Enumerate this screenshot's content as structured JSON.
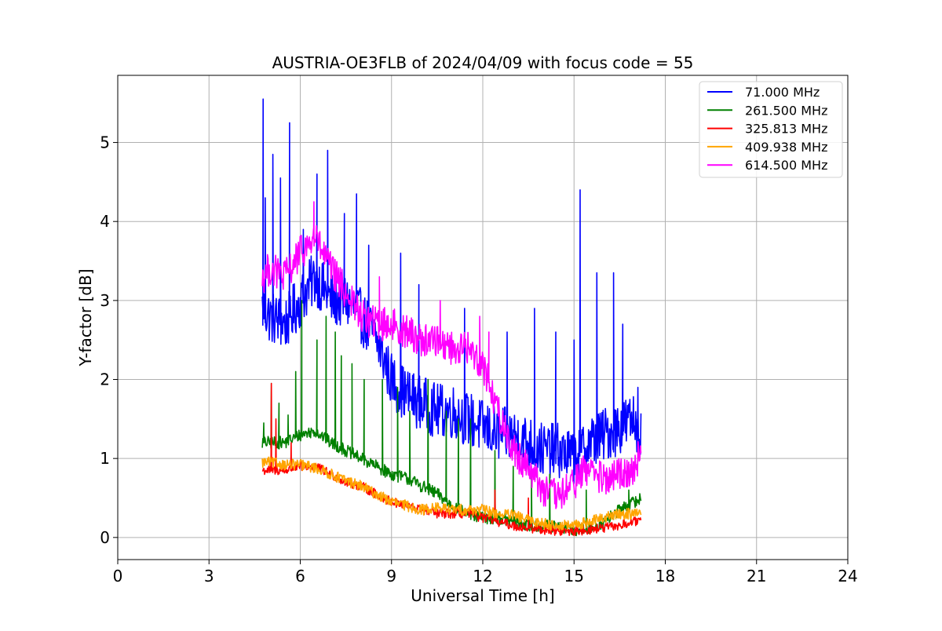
{
  "chart_data": {
    "type": "line",
    "title": "AUSTRIA-OE3FLB of 2024/04/09 with focus code = 55",
    "xlabel": "Universal Time [h]",
    "ylabel": "Y-factor [dB]",
    "xlim": [
      0,
      24
    ],
    "ylim": [
      -0.28,
      5.85
    ],
    "xticks": [
      0,
      3,
      6,
      9,
      12,
      15,
      18,
      21,
      24
    ],
    "yticks": [
      0,
      1,
      2,
      3,
      4,
      5
    ],
    "grid": true,
    "legend_position": "top-right",
    "series": [
      {
        "name": " 71.000 MHz",
        "color": "#0000ff",
        "x": [
          4.75,
          5.0,
          5.5,
          6.0,
          6.5,
          7.0,
          7.5,
          8.0,
          8.5,
          9.0,
          9.5,
          10.0,
          10.5,
          11.0,
          11.5,
          12.0,
          12.5,
          13.0,
          13.5,
          14.0,
          14.5,
          15.0,
          15.5,
          16.0,
          16.5,
          17.0,
          17.2
        ],
        "values": [
          2.9,
          2.8,
          2.7,
          3.0,
          3.3,
          3.0,
          3.0,
          2.8,
          2.5,
          2.0,
          1.8,
          1.7,
          1.6,
          1.6,
          1.5,
          1.4,
          1.3,
          1.3,
          1.2,
          1.1,
          1.1,
          1.0,
          1.2,
          1.3,
          1.4,
          1.5,
          1.3
        ],
        "noise": 0.35,
        "spikes": [
          [
            4.78,
            5.55
          ],
          [
            4.85,
            4.3
          ],
          [
            5.1,
            4.85
          ],
          [
            5.35,
            4.55
          ],
          [
            5.65,
            5.25
          ],
          [
            6.1,
            3.9
          ],
          [
            6.55,
            4.6
          ],
          [
            6.9,
            4.9
          ],
          [
            7.45,
            4.1
          ],
          [
            7.85,
            4.35
          ],
          [
            8.25,
            3.7
          ],
          [
            9.3,
            3.6
          ],
          [
            9.9,
            3.2
          ],
          [
            11.4,
            2.9
          ],
          [
            12.8,
            2.6
          ],
          [
            13.7,
            2.9
          ],
          [
            14.4,
            2.6
          ],
          [
            15.0,
            2.5
          ],
          [
            15.2,
            4.4
          ],
          [
            15.75,
            3.35
          ],
          [
            16.3,
            3.35
          ],
          [
            16.6,
            2.7
          ],
          [
            17.1,
            1.9
          ]
        ]
      },
      {
        "name": " 261.500 MHz",
        "color": "#008000",
        "x": [
          4.75,
          5.0,
          5.5,
          6.0,
          6.5,
          7.0,
          7.5,
          8.0,
          8.5,
          9.0,
          9.5,
          10.0,
          10.5,
          11.0,
          11.5,
          12.0,
          12.5,
          13.0,
          13.5,
          14.0,
          14.5,
          15.0,
          15.5,
          16.0,
          16.5,
          17.0,
          17.2
        ],
        "values": [
          1.2,
          1.2,
          1.2,
          1.3,
          1.35,
          1.2,
          1.1,
          1.0,
          0.9,
          0.8,
          0.75,
          0.65,
          0.55,
          0.4,
          0.3,
          0.25,
          0.25,
          0.2,
          0.15,
          0.15,
          0.12,
          0.1,
          0.1,
          0.2,
          0.35,
          0.45,
          0.5
        ],
        "noise": 0.08,
        "spikes": [
          [
            4.8,
            1.45
          ],
          [
            5.05,
            1.95
          ],
          [
            5.3,
            1.7
          ],
          [
            5.6,
            1.55
          ],
          [
            5.85,
            2.1
          ],
          [
            6.05,
            3.0
          ],
          [
            6.55,
            2.5
          ],
          [
            6.85,
            2.8
          ],
          [
            7.15,
            2.6
          ],
          [
            7.35,
            2.3
          ],
          [
            7.7,
            2.2
          ],
          [
            8.1,
            2.0
          ],
          [
            8.7,
            2.0
          ],
          [
            9.2,
            1.9
          ],
          [
            9.6,
            1.6
          ],
          [
            10.2,
            2.0
          ],
          [
            10.8,
            1.6
          ],
          [
            11.2,
            1.5
          ],
          [
            11.6,
            1.5
          ],
          [
            12.4,
            1.1
          ],
          [
            13.0,
            0.9
          ],
          [
            13.6,
            0.8
          ],
          [
            14.2,
            0.8
          ],
          [
            15.4,
            0.6
          ],
          [
            16.8,
            0.6
          ]
        ]
      },
      {
        "name": " 325.813 MHz",
        "color": "#ff0000",
        "x": [
          4.75,
          5.0,
          5.5,
          6.0,
          6.5,
          7.0,
          7.5,
          8.0,
          8.5,
          9.0,
          9.5,
          10.0,
          10.5,
          11.0,
          11.5,
          12.0,
          12.5,
          13.0,
          13.5,
          14.0,
          14.5,
          15.0,
          15.5,
          16.0,
          16.5,
          17.0,
          17.2
        ],
        "values": [
          0.85,
          0.85,
          0.85,
          0.9,
          0.9,
          0.8,
          0.7,
          0.65,
          0.55,
          0.45,
          0.4,
          0.35,
          0.3,
          0.3,
          0.3,
          0.25,
          0.2,
          0.15,
          0.12,
          0.1,
          0.08,
          0.08,
          0.1,
          0.12,
          0.15,
          0.2,
          0.2
        ],
        "noise": 0.06,
        "spikes": [
          [
            5.05,
            1.95
          ],
          [
            5.2,
            1.5
          ],
          [
            5.7,
            1.2
          ],
          [
            12.4,
            0.6
          ],
          [
            13.5,
            0.5
          ]
        ]
      },
      {
        "name": " 409.938 MHz",
        "color": "#ffa500",
        "x": [
          4.75,
          5.0,
          5.5,
          6.0,
          6.5,
          7.0,
          7.5,
          8.0,
          8.5,
          9.0,
          9.5,
          10.0,
          10.5,
          11.0,
          11.5,
          12.0,
          12.5,
          13.0,
          13.5,
          14.0,
          14.5,
          15.0,
          15.5,
          16.0,
          16.5,
          17.0,
          17.2
        ],
        "values": [
          0.95,
          0.95,
          0.92,
          0.92,
          0.88,
          0.8,
          0.72,
          0.65,
          0.55,
          0.45,
          0.4,
          0.35,
          0.38,
          0.35,
          0.35,
          0.35,
          0.3,
          0.28,
          0.22,
          0.18,
          0.15,
          0.15,
          0.2,
          0.25,
          0.3,
          0.3,
          0.35
        ],
        "noise": 0.07,
        "spikes": []
      },
      {
        "name": " 614.500 MHz",
        "color": "#ff00ff",
        "x": [
          4.75,
          5.0,
          5.5,
          6.0,
          6.5,
          7.0,
          7.5,
          8.0,
          8.5,
          9.0,
          9.5,
          10.0,
          10.5,
          11.0,
          11.5,
          12.0,
          12.5,
          13.0,
          13.5,
          14.0,
          14.5,
          15.0,
          15.5,
          16.0,
          16.5,
          17.0,
          17.2
        ],
        "values": [
          3.3,
          3.4,
          3.3,
          3.6,
          3.8,
          3.4,
          3.1,
          2.8,
          2.7,
          2.7,
          2.6,
          2.5,
          2.5,
          2.4,
          2.4,
          2.2,
          1.6,
          1.1,
          0.9,
          0.6,
          0.5,
          0.7,
          0.9,
          0.7,
          0.8,
          0.9,
          1.1
        ],
        "noise": 0.22,
        "spikes": [
          [
            6.45,
            4.25
          ],
          [
            8.6,
            3.3
          ],
          [
            10.6,
            3.0
          ],
          [
            11.9,
            2.8
          ],
          [
            12.2,
            2.6
          ]
        ]
      }
    ]
  }
}
